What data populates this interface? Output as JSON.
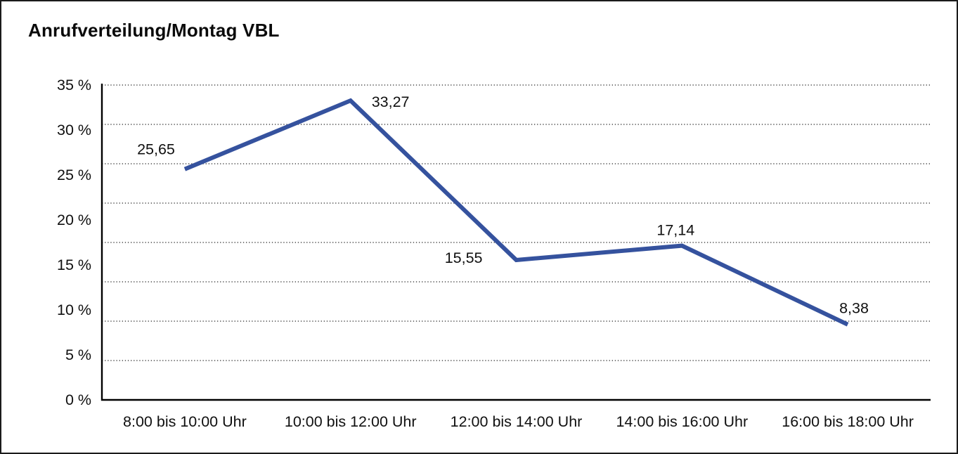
{
  "window": {
    "title": "Anrufverteilung/Montag VBL"
  },
  "chart_data": {
    "type": "line",
    "title": "Anrufverteilung/Montag VBL",
    "categories": [
      "8:00 bis 10:00 Uhr",
      "10:00 bis 12:00 Uhr",
      "12:00 bis 14:00 Uhr",
      "14:00 bis 16:00 Uhr",
      "16:00 bis 18:00 Uhr"
    ],
    "values": [
      25.65,
      33.27,
      15.55,
      17.14,
      8.38
    ],
    "point_labels": [
      "25,65",
      "33,27",
      "15,55",
      "17,14",
      "8,38"
    ],
    "y_tick_labels": [
      "35 %",
      "30 %",
      "25 %",
      "20 %",
      "15 %",
      "10 %",
      "5 %",
      "0 %"
    ],
    "y_tick_values": [
      35,
      30,
      25,
      20,
      15,
      10,
      5,
      0
    ],
    "ylim": [
      0,
      35
    ],
    "xlabel": "",
    "ylabel": "",
    "grid": "horizontal-dotted",
    "legend_position": "none",
    "colors": {
      "line": "#35529e",
      "axis": "#000000",
      "gridline": "#4a4a4a",
      "text": "#101010",
      "background": "#ffffff",
      "border": "#1b1b1b"
    }
  }
}
